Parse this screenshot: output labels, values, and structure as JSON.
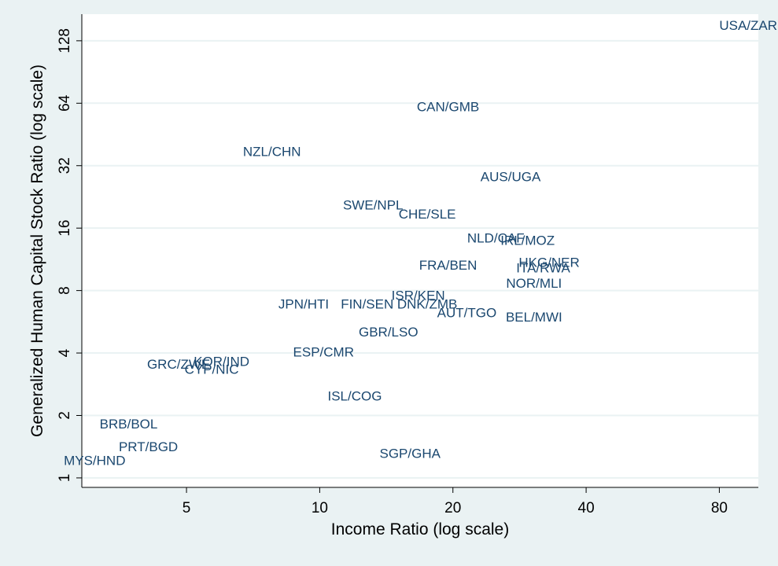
{
  "chart_data": {
    "type": "scatter",
    "title": "",
    "xlabel": "Income Ratio (log scale)",
    "ylabel": "Generalized Human Capital Stock Ratio (log scale)",
    "x_scale": "log",
    "y_scale": "log",
    "xlim": [
      2.9,
      98
    ],
    "ylim": [
      0.9,
      172
    ],
    "x_ticks": [
      5,
      10,
      20,
      40,
      80
    ],
    "y_ticks": [
      1,
      2,
      4,
      8,
      16,
      32,
      64,
      128
    ],
    "grid": "horizontal",
    "marker": "label-only",
    "colors": {
      "background": "#eaf2f3",
      "plot_bg": "#ffffff",
      "grid": "#eaf2f3",
      "label": "#1a476f"
    },
    "points": [
      {
        "label": "USA/ZAR",
        "x": 93,
        "y": 150
      },
      {
        "label": "CAN/GMB",
        "x": 19.5,
        "y": 61
      },
      {
        "label": "NZL/CHN",
        "x": 7.8,
        "y": 37
      },
      {
        "label": "AUS/UGA",
        "x": 27,
        "y": 28
      },
      {
        "label": "SWE/NPL",
        "x": 13.2,
        "y": 20.5
      },
      {
        "label": "CHE/SLE",
        "x": 17.5,
        "y": 18.5
      },
      {
        "label": "NLD/CAF",
        "x": 25,
        "y": 14.2
      },
      {
        "label": "IRL/MOZ",
        "x": 29.5,
        "y": 13.8
      },
      {
        "label": "FRA/BEN",
        "x": 19.5,
        "y": 10.5
      },
      {
        "label": "HKG/NER",
        "x": 33,
        "y": 10.8
      },
      {
        "label": "ITA/RWA",
        "x": 32,
        "y": 10.2
      },
      {
        "label": "NOR/MLI",
        "x": 30.5,
        "y": 8.6
      },
      {
        "label": "ISR/KEN",
        "x": 16.7,
        "y": 7.5
      },
      {
        "label": "JPN/HTI",
        "x": 9.2,
        "y": 6.8
      },
      {
        "label": "FIN/SEN",
        "x": 12.8,
        "y": 6.8
      },
      {
        "label": "DNK/ZMB",
        "x": 17.5,
        "y": 6.8
      },
      {
        "label": "AUT/TGO",
        "x": 21.5,
        "y": 6.2
      },
      {
        "label": "BEL/MWI",
        "x": 30.5,
        "y": 5.9
      },
      {
        "label": "GBR/LSO",
        "x": 14.3,
        "y": 5.0
      },
      {
        "label": "ESP/CMR",
        "x": 10.2,
        "y": 4.0
      },
      {
        "label": "KOR/IND",
        "x": 6.0,
        "y": 3.6
      },
      {
        "label": "GRC/ZWE",
        "x": 4.8,
        "y": 3.5
      },
      {
        "label": "CYP/NIC",
        "x": 5.7,
        "y": 3.3
      },
      {
        "label": "ISL/COG",
        "x": 12.0,
        "y": 2.45
      },
      {
        "label": "BRB/BOL",
        "x": 3.7,
        "y": 1.8
      },
      {
        "label": "PRT/BGD",
        "x": 4.1,
        "y": 1.4
      },
      {
        "label": "MYS/HND",
        "x": 3.1,
        "y": 1.2
      },
      {
        "label": "SGP/GHA",
        "x": 16.0,
        "y": 1.3
      }
    ]
  }
}
